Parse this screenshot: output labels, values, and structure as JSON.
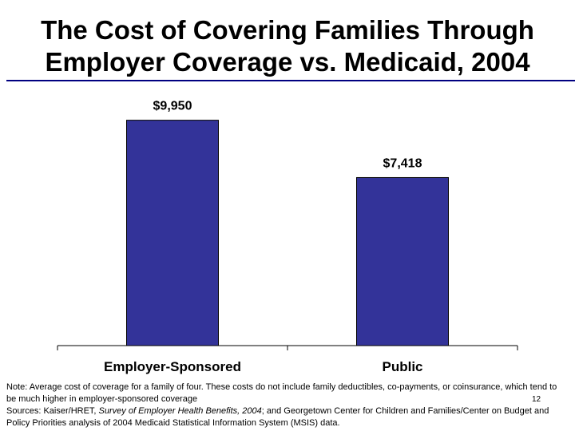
{
  "header": {
    "title_line1": "The Cost of Covering Families Through",
    "title_line2": "Employer Coverage vs. Medicaid, 2004"
  },
  "chart_data": {
    "type": "bar",
    "categories": [
      "Employer-Sponsored",
      "Public"
    ],
    "values": [
      9950,
      7418
    ],
    "value_labels": [
      "$9,950",
      "$7,418"
    ],
    "ylim": [
      0,
      10500
    ],
    "grid": false,
    "bar_color": "#333399"
  },
  "footer": {
    "note": "Note: Average cost of coverage for a family of four. These costs do not include family deductibles, co-payments, or coinsurance, which tend to be much higher in employer-sponsored coverage",
    "sources_prefix": "Sources: Kaiser/HRET, ",
    "sources_title": "Survey of Employer Health Benefits, 2004",
    "sources_rest": "; and Georgetown Center for Children and Families/Center on Budget and Policy Priorities analysis of 2004 Medicaid Statistical Information System (MSIS) data.",
    "page_number": "12"
  }
}
